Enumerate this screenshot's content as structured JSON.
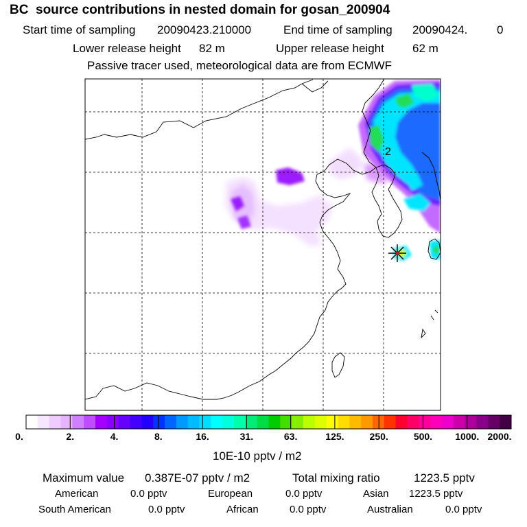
{
  "header": {
    "title": "BC  source contributions in nested domain for gosan_200904",
    "start_label": "Start time of sampling",
    "start_value": "20090423.210000",
    "end_label": "End time of sampling",
    "end_value": "20090424.",
    "end_extra": "0",
    "lower_label": "Lower release height",
    "lower_value": "82 m",
    "upper_label": "Upper release height",
    "upper_value": "62 m",
    "note": "Passive tracer used, meteorological data are from ECMWF"
  },
  "chart_data": {
    "type": "heatmap",
    "title": "BC  source contributions in nested domain for gosan_200904",
    "map_label": "2",
    "colorbar": {
      "unit_label": "10E-10 pptv / m2",
      "tick_labels": [
        "0.",
        "2.",
        "4.",
        "8.",
        "16.",
        "31.",
        "63.",
        "125.",
        "250.",
        "500.",
        "1000.",
        "2000."
      ],
      "colors": [
        "#ffffff",
        "#f7e6ff",
        "#efccff",
        "#e6b3ff",
        "#d080ff",
        "#bf4dff",
        "#a600ff",
        "#8a00ff",
        "#6600ff",
        "#4400ff",
        "#2200ff",
        "#0033ff",
        "#0066ff",
        "#0099ff",
        "#00bbff",
        "#00ddff",
        "#00ffff",
        "#00ffdd",
        "#00ffaa",
        "#00ee77",
        "#00dd44",
        "#00cc00",
        "#44dd00",
        "#88ee00",
        "#bbff00",
        "#ddff00",
        "#ffff00",
        "#ffdd00",
        "#ffbb00",
        "#ff9900",
        "#ff6600",
        "#ff3300",
        "#ff0033",
        "#ff0066",
        "#ff0099",
        "#ff00bb",
        "#ee00cc",
        "#cc00aa",
        "#aa0099",
        "#880088",
        "#660066",
        "#440044"
      ]
    }
  },
  "footer": {
    "max_label": "Maximum value",
    "max_value": "0.387E-07 pptv / m2",
    "total_label": "Total mixing ratio",
    "total_value": "1223.5 pptv",
    "regions": [
      {
        "name": "American",
        "value": "0.0 pptv"
      },
      {
        "name": "European",
        "value": "0.0 pptv"
      },
      {
        "name": "Asian",
        "value": "1223.5 pptv"
      },
      {
        "name": "South American",
        "value": "0.0 pptv"
      },
      {
        "name": "African",
        "value": "0.0 pptv"
      },
      {
        "name": "Australian",
        "value": "0.0 pptv"
      }
    ]
  }
}
